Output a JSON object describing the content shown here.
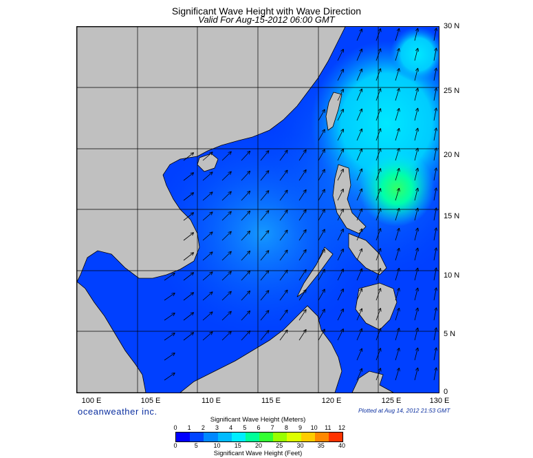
{
  "title": "Significant Wave Height with Wave Direction",
  "subtitle": "Valid For Aug-15-2012 06:00 GMT",
  "map": {
    "lon_range": [
      100,
      130
    ],
    "lat_range": [
      0,
      30
    ],
    "lon_labels": [
      "100 E",
      "105 E",
      "110 E",
      "115 E",
      "120 E",
      "125 E",
      "130 E"
    ],
    "lat_labels": [
      "30 N",
      "25 N",
      "20 N",
      "15 N",
      "10 N",
      "5 N",
      "0"
    ],
    "land_color": "#c0c0c0",
    "wave_colors": {
      "low": "#0033ee",
      "mid": "#0088ff",
      "high": "#00e8ff",
      "peak": "#33ff66"
    }
  },
  "brand": "oceanweather inc.",
  "plotted": "Plotted at Aug 14, 2012 21:53 GMT",
  "legend": {
    "meters_title": "Significant Wave Height (Meters)",
    "meters_ticks": [
      "0",
      "1",
      "2",
      "3",
      "4",
      "5",
      "6",
      "7",
      "8",
      "9",
      "10",
      "11",
      "12"
    ],
    "feet_title": "Significant Wave Height (Feet)",
    "feet_ticks": [
      "0",
      "5",
      "10",
      "15",
      "20",
      "25",
      "30",
      "35",
      "40"
    ],
    "colors": [
      "#0000ff",
      "#0044ff",
      "#0088ff",
      "#00bbff",
      "#00eeff",
      "#00ff99",
      "#33ff33",
      "#99ff00",
      "#ddff00",
      "#ffcc00",
      "#ff8800",
      "#ff3300"
    ]
  }
}
